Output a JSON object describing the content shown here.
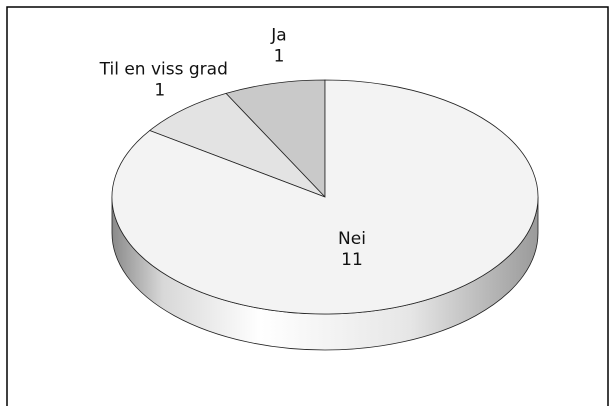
{
  "chart_data": {
    "type": "pie",
    "categories": [
      "Ja",
      "Til en viss grad",
      "Nei"
    ],
    "values": [
      1,
      1,
      11
    ],
    "colors": [
      "#c9c9c9",
      "#e3e3e3",
      "#f3f3f3"
    ]
  }
}
